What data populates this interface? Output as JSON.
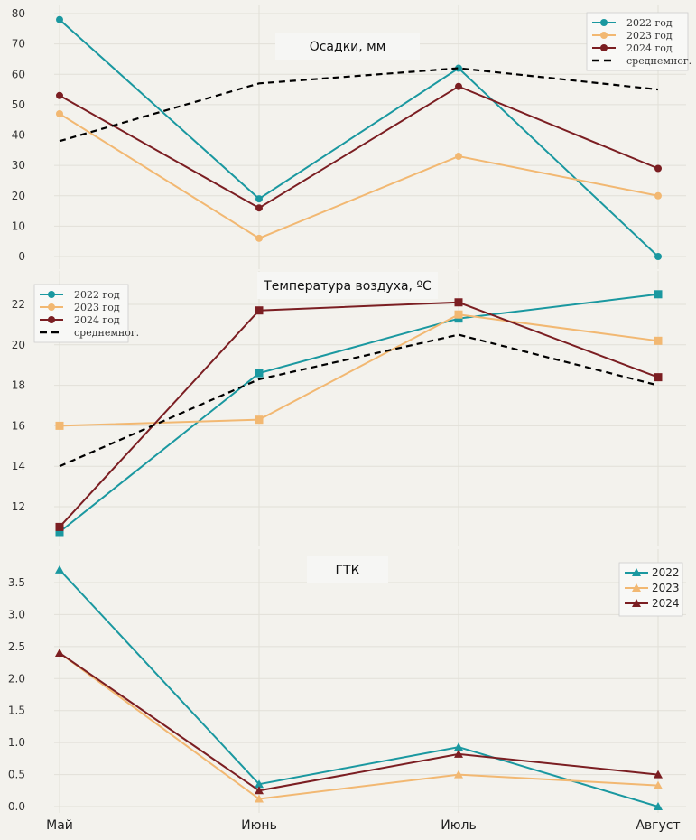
{
  "chart_data": [
    {
      "type": "line",
      "title": "Осадки, мм",
      "categories": [
        "Май",
        "Июнь",
        "Июль",
        "Август"
      ],
      "ylim": [
        0,
        80
      ],
      "yticks": [
        0,
        10,
        20,
        30,
        40,
        50,
        60,
        70,
        80
      ],
      "marker": "circle",
      "legend_position": "top-right",
      "series": [
        {
          "name": "2022 год",
          "color": "#1a98a0",
          "values": [
            78,
            19,
            62,
            0
          ]
        },
        {
          "name": "2023 год",
          "color": "#f2b872",
          "values": [
            47,
            6,
            33,
            20
          ]
        },
        {
          "name": "2024 год",
          "color": "#7b1e22",
          "values": [
            53,
            16,
            56,
            29
          ]
        },
        {
          "name": "среднемног.",
          "color": "#000000",
          "dashed": true,
          "values": [
            38,
            57,
            62,
            55
          ]
        }
      ]
    },
    {
      "type": "line",
      "title": "Температура воздуха, ºС",
      "categories": [
        "Май",
        "Июнь",
        "Июль",
        "Август"
      ],
      "ylim": [
        10.5,
        23
      ],
      "yticks": [
        12,
        14,
        16,
        18,
        20,
        22
      ],
      "marker": "square",
      "legend_position": "top-left",
      "series": [
        {
          "name": "2022 год",
          "color": "#1a98a0",
          "values": [
            10.75,
            18.6,
            21.3,
            22.5
          ]
        },
        {
          "name": "2023 год",
          "color": "#f2b872",
          "values": [
            16,
            16.3,
            21.5,
            20.2
          ]
        },
        {
          "name": "2024 год",
          "color": "#7b1e22",
          "values": [
            11,
            21.7,
            22.1,
            18.4
          ]
        },
        {
          "name": "среднемног.",
          "color": "#000000",
          "dashed": true,
          "values": [
            14,
            18.3,
            20.5,
            18.0
          ]
        }
      ]
    },
    {
      "type": "line",
      "title": "ГТК",
      "categories": [
        "Май",
        "Июнь",
        "Июль",
        "Август"
      ],
      "ylim": [
        0,
        3.8
      ],
      "yticks": [
        "0.0",
        "0.5",
        "1.0",
        "1.5",
        "2.0",
        "2.5",
        "3.0",
        "3.5"
      ],
      "marker": "triangle",
      "legend_position": "top-right",
      "series": [
        {
          "name": "2022",
          "color": "#1a98a0",
          "values": [
            3.7,
            0.35,
            0.93,
            0
          ]
        },
        {
          "name": "2023",
          "color": "#f2b872",
          "values": [
            2.4,
            0.12,
            0.5,
            0.33
          ]
        },
        {
          "name": "2024",
          "color": "#7b1e22",
          "values": [
            2.4,
            0.25,
            0.82,
            0.5
          ]
        }
      ]
    }
  ]
}
